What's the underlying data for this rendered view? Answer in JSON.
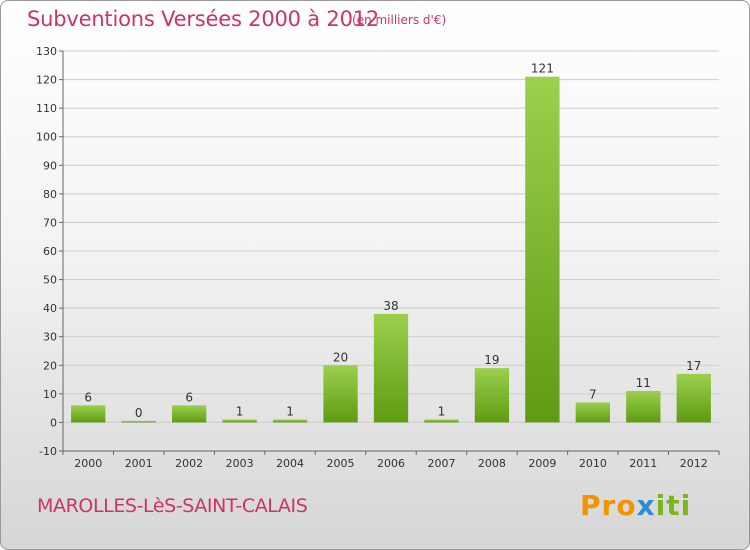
{
  "header": {
    "title": "Subventions Versées 2000 à 2012",
    "subtitle": "(en milliers d'€)"
  },
  "footer": {
    "town": "MAROLLES-LèS-SAINT-CALAIS",
    "logo": [
      "Pro",
      "x",
      "iti"
    ]
  },
  "colors": {
    "bar_top": "#9ccf4e",
    "bar_bottom": "#5e9c12",
    "title": "#cc3366",
    "grid": "#cccccc"
  },
  "chart_data": {
    "type": "bar",
    "title": "Subventions Versées 2000 à 2012",
    "subtitle": "(en milliers d'€)",
    "categories": [
      "2000",
      "2001",
      "2002",
      "2003",
      "2004",
      "2005",
      "2006",
      "2007",
      "2008",
      "2009",
      "2010",
      "2011",
      "2012"
    ],
    "values": [
      6,
      0,
      6,
      1,
      1,
      20,
      38,
      1,
      19,
      121,
      7,
      11,
      17
    ],
    "ylim": [
      -10,
      130
    ],
    "yticks": [
      -10,
      0,
      10,
      20,
      30,
      40,
      50,
      60,
      70,
      80,
      90,
      100,
      110,
      120,
      130
    ],
    "grid": true,
    "xlabel": "",
    "ylabel": ""
  }
}
